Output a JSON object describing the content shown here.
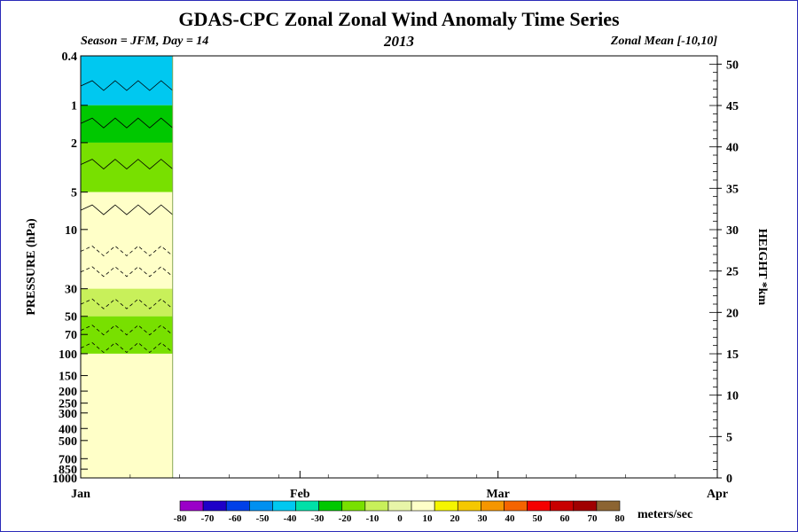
{
  "title": "GDAS-CPC Zonal Zonal Wind Anomaly Time Series",
  "subtitle_left": "Season = JFM, Day =  14",
  "subtitle_center": "2013",
  "subtitle_right": "Zonal Mean [-10,10]",
  "colorbar_units": "meters/sec",
  "chart_data": {
    "type": "heatmap",
    "title": "GDAS-CPC Zonal Zonal Wind Anomaly Time Series",
    "xlabel": "",
    "ylabel": "PRESSURE (hPa)",
    "y2label": "HEIGHT *km",
    "x_ticks": [
      "Jan",
      "Feb",
      "Mar",
      "Apr"
    ],
    "y_ticks": [
      "0.4",
      "1",
      "2",
      "5",
      "10",
      "30",
      "50",
      "70",
      "100",
      "150",
      "200",
      "250",
      "300",
      "400",
      "500",
      "700",
      "850",
      "1000"
    ],
    "y_scale": "log",
    "y_range_hPa": [
      1000,
      0.4
    ],
    "y2_ticks": [
      "0",
      "5",
      "10",
      "15",
      "20",
      "25",
      "30",
      "35",
      "40",
      "45",
      "50"
    ],
    "y2_range_km": [
      0,
      51
    ],
    "data_days": [
      1,
      14
    ],
    "colorbar": {
      "labels": [
        "-80",
        "-70",
        "-60",
        "-50",
        "-40",
        "-30",
        "-20",
        "-10",
        "0",
        "10",
        "20",
        "30",
        "40",
        "50",
        "60",
        "70",
        "80"
      ],
      "colors": [
        "#9a00c8",
        "#1e00c8",
        "#0040e8",
        "#0090f0",
        "#00c8f0",
        "#00e0a8",
        "#00c800",
        "#78e000",
        "#c8f05a",
        "#e8f5a8",
        "#ffffc8",
        "#f5f500",
        "#f5c800",
        "#f59600",
        "#f56400",
        "#f50000",
        "#c80000",
        "#a00000",
        "#8c6432"
      ]
    },
    "bands": [
      {
        "level_hPa": 0.4,
        "value": -40
      },
      {
        "level_hPa": 1,
        "value": -20
      },
      {
        "level_hPa": 2,
        "value": -10
      },
      {
        "level_hPa": 5,
        "value": 0
      },
      {
        "level_hPa": 10,
        "value": 5
      },
      {
        "level_hPa": 30,
        "value": -5
      },
      {
        "level_hPa": 50,
        "value": -10
      },
      {
        "level_hPa": 100,
        "value": 0
      },
      {
        "level_hPa": 1000,
        "value": 0
      }
    ]
  }
}
